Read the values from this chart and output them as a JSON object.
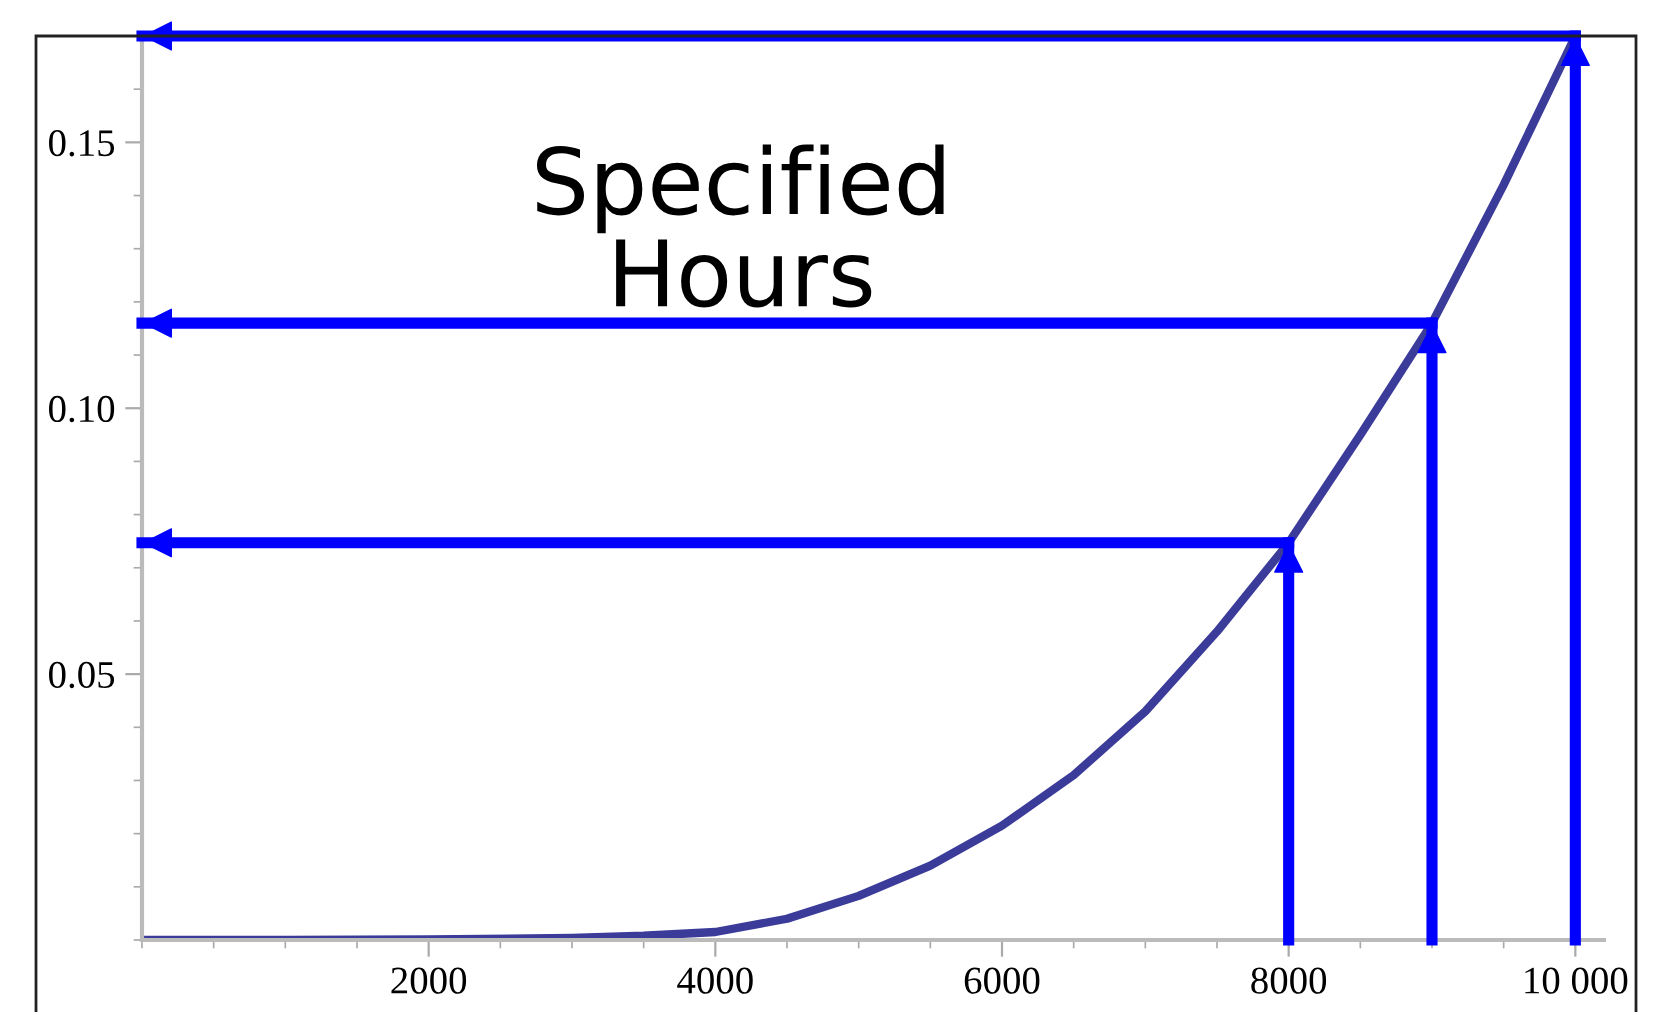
{
  "chart_data": {
    "type": "line",
    "x": [
      0,
      1000,
      2000,
      3000,
      3500,
      4000,
      4500,
      5000,
      5500,
      6000,
      6500,
      7000,
      7500,
      8000,
      8500,
      9000,
      9500,
      10000
    ],
    "series": [
      {
        "color": "#3b3b9a",
        "values": [
          0,
          0,
          0.0001,
          0.0004,
          0.0008,
          0.0015,
          0.004,
          0.0083,
          0.014,
          0.0215,
          0.031,
          0.043,
          0.058,
          0.0747,
          0.095,
          0.116,
          0.142,
          0.17
        ]
      }
    ],
    "xlim": [
      0,
      10200
    ],
    "ylim": [
      0,
      0.17
    ],
    "xticks": [
      2000,
      4000,
      6000,
      8000,
      {
        "value": 10000,
        "label": "10 000"
      }
    ],
    "yticks": [
      {
        "value": 0.05,
        "label": "0.05"
      },
      {
        "value": 0.1,
        "label": "0.10"
      },
      {
        "value": 0.15,
        "label": "0.15"
      }
    ],
    "ref_lines": [
      {
        "axis": "x",
        "value": 8000,
        "color": "#0000ff"
      },
      {
        "axis": "x",
        "value": 9000,
        "color": "#0000ff"
      },
      {
        "axis": "x",
        "value": 10000,
        "color": "#0000ff"
      },
      {
        "axis": "y",
        "value": 0.0747,
        "color": "#0000ff"
      },
      {
        "axis": "y",
        "value": 0.116,
        "color": "#0000ff"
      },
      {
        "axis": "y",
        "value": 0.17,
        "color": "#0000ff"
      }
    ],
    "annotations": [
      "Specified\nHours"
    ],
    "grid": false,
    "legend": false
  }
}
